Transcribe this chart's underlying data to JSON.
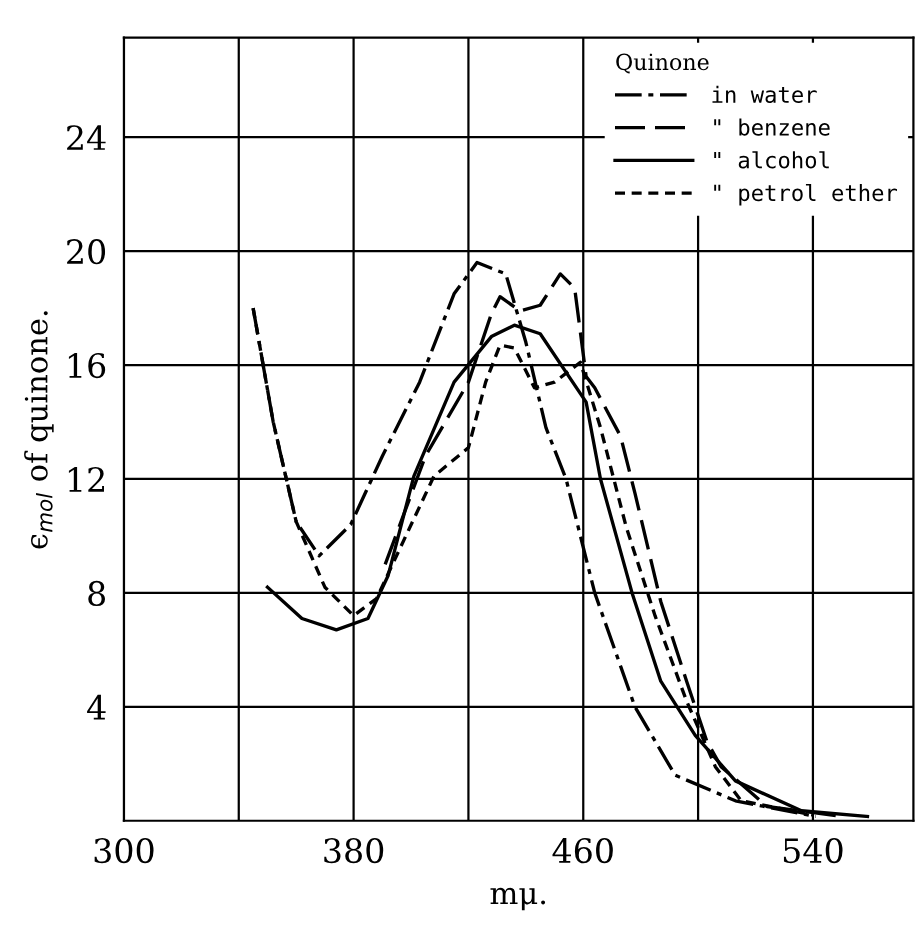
{
  "chart_data": {
    "type": "line",
    "xlabel": "mμ.",
    "ylabel": "ϵ$_{mol}$ of quinone.",
    "legend_title": "Quinone",
    "legend": "top right",
    "grid": true,
    "marker": "none",
    "xlim": [
      300,
      575
    ],
    "ylim": [
      0,
      27.5
    ],
    "xticks": [
      300,
      {
        "value": 340,
        "label": null
      },
      380,
      {
        "value": 420,
        "label": null
      },
      460,
      {
        "value": 500,
        "label": null
      },
      540
    ],
    "yticks": [
      4,
      8,
      12,
      16,
      20,
      24
    ],
    "series": [
      {
        "name": "in water",
        "color": "#000000",
        "line_style": "dashdot",
        "x": [
          345,
          352,
          360,
          368,
          379,
          390,
          403,
          415,
          423,
          433,
          440,
          447,
          454,
          464,
          478,
          492,
          513,
          541
        ],
        "values": [
          18,
          14,
          10.5,
          9.3,
          10.4,
          12.8,
          15.4,
          18.5,
          19.6,
          19.2,
          16.8,
          13.8,
          12,
          8,
          4,
          1.6,
          0.7,
          0.15
        ]
      },
      {
        "name": "\" benzene",
        "color": "#000000",
        "line_style": "dashed",
        "x": [
          391,
          405,
          420,
          428,
          431,
          438,
          445,
          452,
          457,
          461,
          464,
          473,
          478,
          487,
          496,
          503,
          508,
          524,
          550
        ],
        "values": [
          9,
          12.8,
          15.4,
          17.8,
          18.4,
          17.9,
          18.1,
          19.2,
          18.7,
          15.6,
          15.2,
          13.5,
          11.5,
          7.7,
          4.9,
          2.8,
          1.9,
          0.5,
          0.15
        ]
      },
      {
        "name": "\" alcohol",
        "color": "#000000",
        "line_style": "solid",
        "x": [
          350,
          362,
          374,
          385,
          392,
          401,
          415,
          428,
          436,
          445,
          461,
          466,
          477,
          487,
          499,
          513,
          536,
          559
        ],
        "values": [
          8.2,
          7.1,
          6.7,
          7.1,
          8.6,
          12.1,
          15.4,
          17,
          17.4,
          17.1,
          14.7,
          12,
          8,
          4.9,
          3,
          1.4,
          0.35,
          0.15
        ]
      },
      {
        "name": "\" petrol ether",
        "color": "#000000",
        "line_style": "dotted",
        "x": [
          345,
          352,
          360,
          370,
          380,
          388,
          394,
          408,
          420,
          426,
          431,
          436,
          443,
          450,
          459,
          466,
          475,
          485,
          496,
          506,
          515,
          540
        ],
        "values": [
          18,
          14,
          10.5,
          8.2,
          7.2,
          7.8,
          9.1,
          12.1,
          13.1,
          15.4,
          16.7,
          16.6,
          15.2,
          15.4,
          16.1,
          13.8,
          10.3,
          7.2,
          4.2,
          1.9,
          0.7,
          0.2
        ]
      }
    ]
  }
}
